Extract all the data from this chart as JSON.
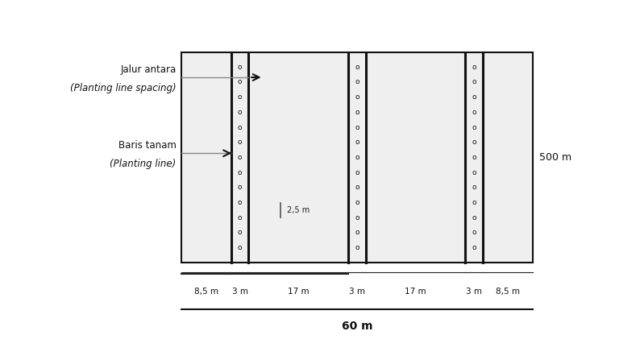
{
  "fig_width": 7.94,
  "fig_height": 4.42,
  "bg_color": "#efefef",
  "box_edge_color": "#111111",
  "thick_line_color": "#111111",
  "segments": [
    8.5,
    3,
    17,
    3,
    17,
    3,
    8.5
  ],
  "segment_labels": [
    "8,5 m",
    "3 m",
    "17 m",
    "3 m",
    "17 m",
    "3 m",
    "8,5 m"
  ],
  "total_label": "60 m",
  "right_label": "500 m",
  "jalur_antara_line1": "Jalur antara",
  "jalur_antara_line2": "(Planting line spacing)",
  "baris_tanam_line1": "Baris tanam",
  "baris_tanam_line2": "(Planting line)",
  "spacing_label": "2,5 m",
  "plant_symbol": "o",
  "plant_fontsize": 6.5,
  "plant_color": "#111111"
}
